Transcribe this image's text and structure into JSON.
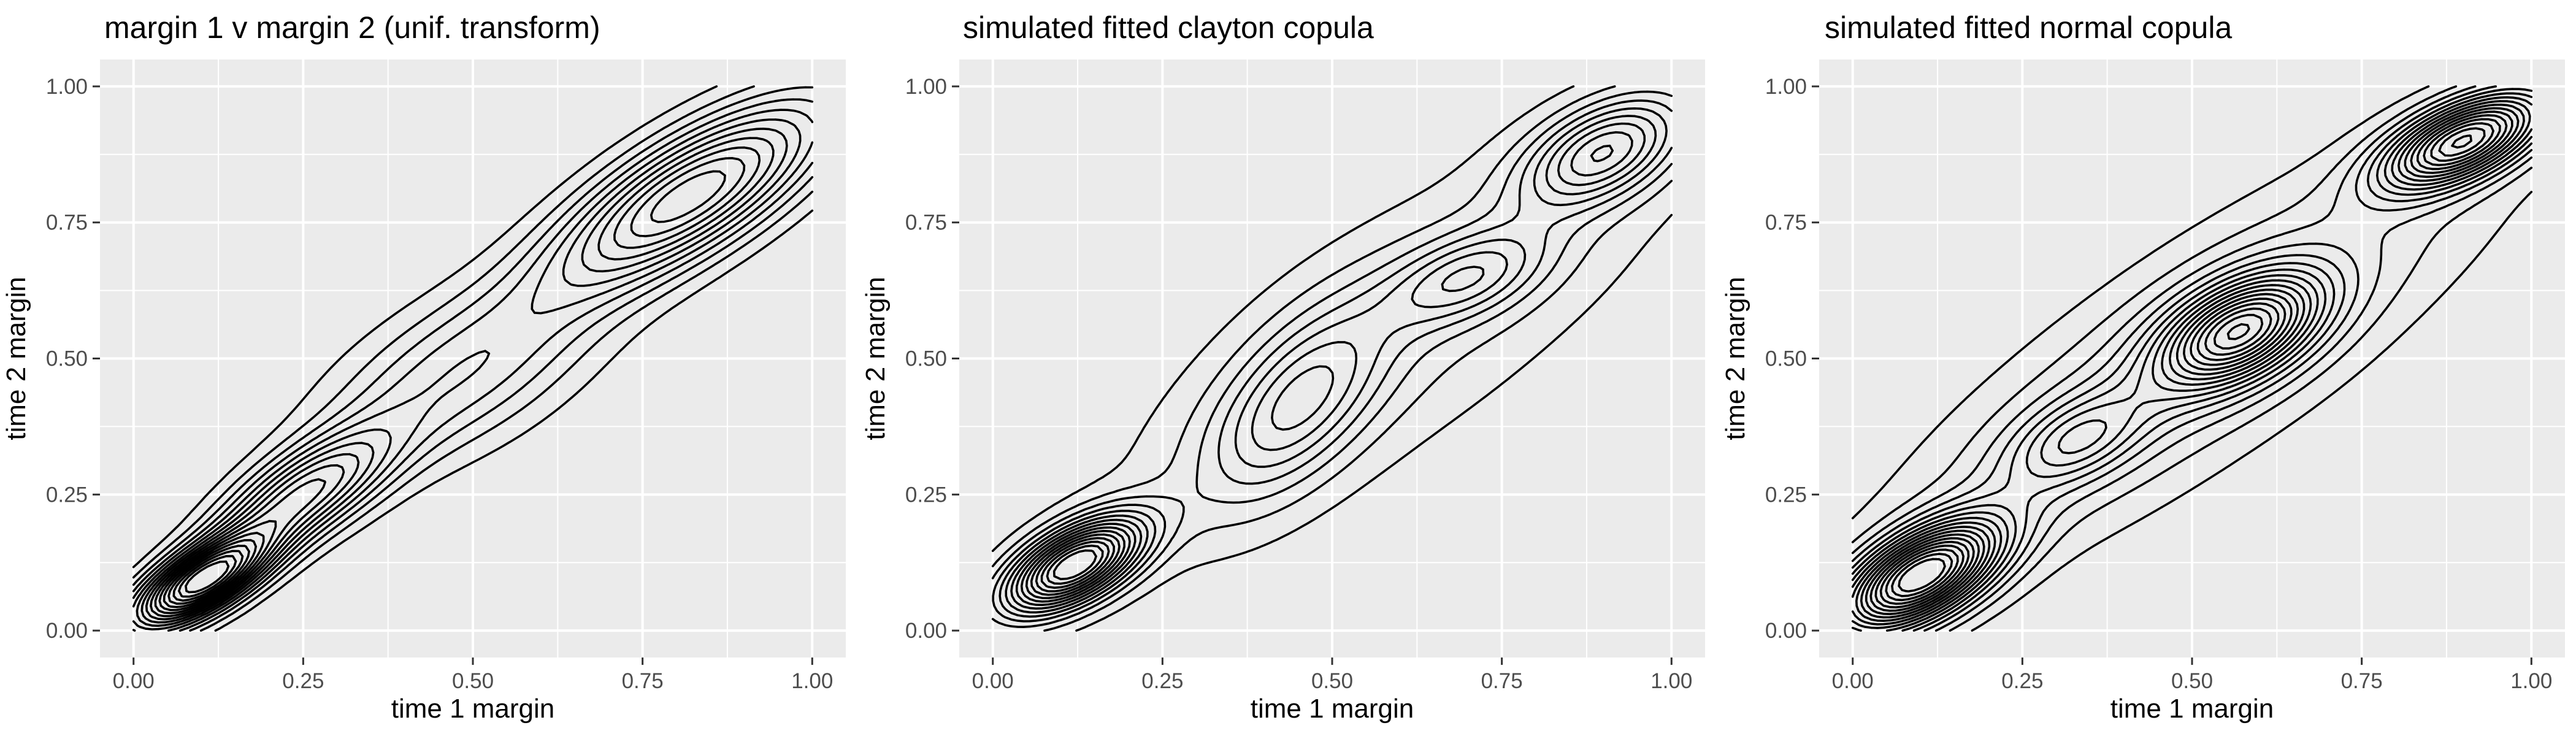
{
  "chart_data": [
    {
      "type": "contour",
      "title": "margin 1 v margin 2 (unif. transform)",
      "xlabel": "time 1 margin",
      "ylabel": "time 2 margin",
      "xlim": [
        0,
        1
      ],
      "ylim": [
        0,
        1
      ],
      "xticks": [
        "0.00",
        "0.25",
        "0.50",
        "0.75",
        "1.00"
      ],
      "yticks": [
        "0.00",
        "0.25",
        "0.50",
        "0.75",
        "1.00"
      ],
      "grid": true,
      "legend": "none",
      "contour_levels": 17,
      "density_modes": [
        {
          "x": 0.1,
          "y": 0.09,
          "sx": 0.07,
          "sy": 0.06,
          "r": 0.7,
          "w": 2.2
        },
        {
          "x": 0.25,
          "y": 0.25,
          "sx": 0.09,
          "sy": 0.08,
          "r": 0.7,
          "w": 1.2
        },
        {
          "x": 0.48,
          "y": 0.47,
          "sx": 0.14,
          "sy": 0.12,
          "r": 0.6,
          "w": 0.6
        },
        {
          "x": 0.82,
          "y": 0.8,
          "sx": 0.14,
          "sy": 0.12,
          "r": 0.75,
          "w": 1.5
        }
      ]
    },
    {
      "type": "contour",
      "title": "simulated fitted clayton copula",
      "xlabel": "time 1 margin",
      "ylabel": "time 2 margin",
      "xlim": [
        0,
        1
      ],
      "ylim": [
        0,
        1
      ],
      "xticks": [
        "0.00",
        "0.25",
        "0.50",
        "0.75",
        "1.00"
      ],
      "yticks": [
        "0.00",
        "0.25",
        "0.50",
        "0.75",
        "1.00"
      ],
      "grid": true,
      "legend": "none",
      "contour_levels": 15,
      "density_modes": [
        {
          "x": 0.12,
          "y": 0.12,
          "sx": 0.07,
          "sy": 0.06,
          "r": 0.6,
          "w": 2.6
        },
        {
          "x": 0.45,
          "y": 0.42,
          "sx": 0.09,
          "sy": 0.12,
          "r": 0.6,
          "w": 0.9
        },
        {
          "x": 0.7,
          "y": 0.65,
          "sx": 0.08,
          "sy": 0.06,
          "r": 0.5,
          "w": 0.8
        },
        {
          "x": 0.9,
          "y": 0.88,
          "sx": 0.08,
          "sy": 0.07,
          "r": 0.5,
          "w": 1.3
        },
        {
          "x": 0.6,
          "y": 0.55,
          "sx": 0.3,
          "sy": 0.28,
          "r": 0.8,
          "w": 0.4
        }
      ]
    },
    {
      "type": "contour",
      "title": "simulated fitted normal copula",
      "xlabel": "time 1 margin",
      "ylabel": "time 2 margin",
      "xlim": [
        0,
        1
      ],
      "ylim": [
        0,
        1
      ],
      "xticks": [
        "0.00",
        "0.25",
        "0.50",
        "0.75",
        "1.00"
      ],
      "yticks": [
        "0.00",
        "0.25",
        "0.50",
        "0.75",
        "1.00"
      ],
      "grid": true,
      "legend": "none",
      "contour_levels": 18,
      "density_modes": [
        {
          "x": 0.1,
          "y": 0.1,
          "sx": 0.08,
          "sy": 0.07,
          "r": 0.6,
          "w": 2.2
        },
        {
          "x": 0.57,
          "y": 0.55,
          "sx": 0.08,
          "sy": 0.07,
          "r": 0.5,
          "w": 1.6
        },
        {
          "x": 0.9,
          "y": 0.9,
          "sx": 0.08,
          "sy": 0.06,
          "r": 0.6,
          "w": 1.8
        },
        {
          "x": 0.5,
          "y": 0.5,
          "sx": 0.3,
          "sy": 0.27,
          "r": 0.85,
          "w": 0.5
        },
        {
          "x": 0.33,
          "y": 0.35,
          "sx": 0.07,
          "sy": 0.06,
          "r": 0.5,
          "w": 0.6
        }
      ]
    }
  ]
}
